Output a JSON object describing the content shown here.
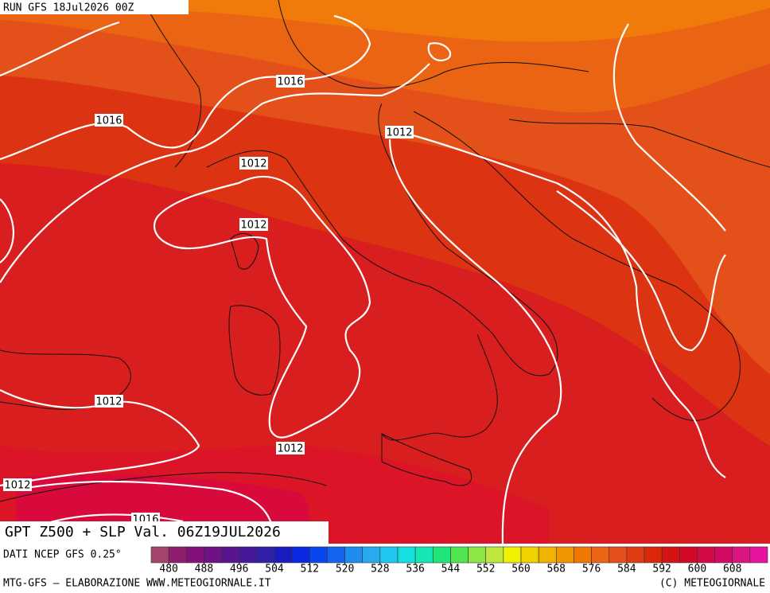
{
  "header": {
    "run": "RUN GFS 18Jul2026 00Z"
  },
  "isobar_labels": [
    "1016",
    "1016",
    "1012",
    "1012",
    "1012",
    "1012",
    "1012",
    "1012",
    "1016"
  ],
  "title": "GPT Z500 + SLP Val. 06Z19JUL2026",
  "source": "DATI NCEP GFS 0.25°",
  "colorbar": {
    "colors": [
      "#a3456e",
      "#8f1f6e",
      "#82127a",
      "#6e1286",
      "#5a1490",
      "#46189a",
      "#3020a8",
      "#1a1cc0",
      "#0a28e0",
      "#0a46f0",
      "#1464f0",
      "#1e8cf0",
      "#28aaf0",
      "#1ec8f0",
      "#14e0e0",
      "#14e6b4",
      "#1ee678",
      "#50e650",
      "#8ce646",
      "#bee63c",
      "#f0f000",
      "#f0d200",
      "#f0b400",
      "#f09600",
      "#f07800",
      "#ec6414",
      "#e6501e",
      "#e03c14",
      "#dc280a",
      "#d41414",
      "#d20a28",
      "#d20a46",
      "#d20a64",
      "#dc1482",
      "#e614a0"
    ],
    "ticks": [
      480,
      488,
      496,
      504,
      512,
      520,
      528,
      536,
      544,
      552,
      560,
      568,
      576,
      584,
      592,
      600,
      608
    ]
  },
  "footer": {
    "left": "MTG-GFS — ELABORAZIONE WWW.METEOGIORNALE.IT",
    "right": "(C) METEOGIORNALE"
  }
}
